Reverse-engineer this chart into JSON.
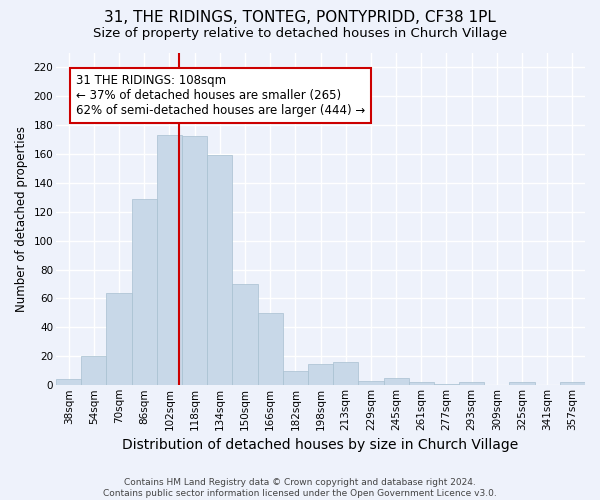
{
  "title": "31, THE RIDINGS, TONTEG, PONTYPRIDD, CF38 1PL",
  "subtitle": "Size of property relative to detached houses in Church Village",
  "xlabel": "Distribution of detached houses by size in Church Village",
  "ylabel": "Number of detached properties",
  "footnote1": "Contains HM Land Registry data © Crown copyright and database right 2024.",
  "footnote2": "Contains public sector information licensed under the Open Government Licence v3.0.",
  "bar_labels": [
    "38sqm",
    "54sqm",
    "70sqm",
    "86sqm",
    "102sqm",
    "118sqm",
    "134sqm",
    "150sqm",
    "166sqm",
    "182sqm",
    "198sqm",
    "213sqm",
    "229sqm",
    "245sqm",
    "261sqm",
    "277sqm",
    "293sqm",
    "309sqm",
    "325sqm",
    "341sqm",
    "357sqm"
  ],
  "bar_values": [
    4,
    20,
    64,
    129,
    173,
    172,
    159,
    70,
    50,
    10,
    15,
    16,
    3,
    5,
    2,
    1,
    2,
    0,
    2,
    0,
    2
  ],
  "bar_color": "#c8d8e8",
  "bar_edgecolor": "#a8c0d0",
  "annotation_text_line1": "31 THE RIDINGS: 108sqm",
  "annotation_text_line2": "← 37% of detached houses are smaller (265)",
  "annotation_text_line3": "62% of semi-detached houses are larger (444) →",
  "vline_color": "#cc0000",
  "annotation_box_edgecolor": "#cc0000",
  "background_color": "#eef2fb",
  "ylim": [
    0,
    230
  ],
  "grid_color": "#ffffff",
  "title_fontsize": 11,
  "subtitle_fontsize": 9.5,
  "xlabel_fontsize": 10,
  "ylabel_fontsize": 8.5,
  "tick_fontsize": 7.5,
  "annotation_fontsize": 8.5,
  "footnote_fontsize": 6.5
}
